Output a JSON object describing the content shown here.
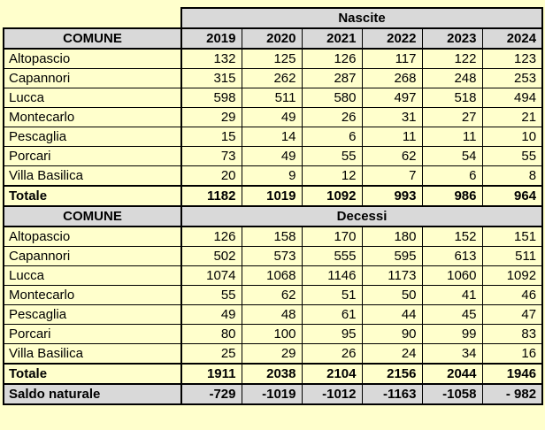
{
  "comune_header": "COMUNE",
  "years": [
    "2019",
    "2020",
    "2021",
    "2022",
    "2023",
    "2024"
  ],
  "sections": [
    {
      "title": "Nascite",
      "rows": [
        {
          "label": "Altopascio",
          "values": [
            "132",
            "125",
            "126",
            "117",
            "122",
            "123"
          ]
        },
        {
          "label": "Capannori",
          "values": [
            "315",
            "262",
            "287",
            "268",
            "248",
            "253"
          ]
        },
        {
          "label": "Lucca",
          "values": [
            "598",
            "511",
            "580",
            "497",
            "518",
            "494"
          ]
        },
        {
          "label": "Montecarlo",
          "values": [
            "29",
            "49",
            "26",
            "31",
            "27",
            "21"
          ]
        },
        {
          "label": "Pescaglia",
          "values": [
            "15",
            "14",
            "6",
            "11",
            "11",
            "10"
          ]
        },
        {
          "label": "Porcari",
          "values": [
            "73",
            "49",
            "55",
            "62",
            "54",
            "55"
          ]
        },
        {
          "label": "Villa Basilica",
          "values": [
            "20",
            "9",
            "12",
            "7",
            "6",
            "8"
          ]
        }
      ],
      "total": {
        "label": "Totale",
        "values": [
          "1182",
          "1019",
          "1092",
          "993",
          "986",
          "964"
        ]
      }
    },
    {
      "title": "Decessi",
      "rows": [
        {
          "label": "Altopascio",
          "values": [
            "126",
            "158",
            "170",
            "180",
            "152",
            "151"
          ]
        },
        {
          "label": "Capannori",
          "values": [
            "502",
            "573",
            "555",
            "595",
            "613",
            "511"
          ]
        },
        {
          "label": "Lucca",
          "values": [
            "1074",
            "1068",
            "1146",
            "1173",
            "1060",
            "1092"
          ]
        },
        {
          "label": "Montecarlo",
          "values": [
            "55",
            "62",
            "51",
            "50",
            "41",
            "46"
          ]
        },
        {
          "label": "Pescaglia",
          "values": [
            "49",
            "48",
            "61",
            "44",
            "45",
            "47"
          ]
        },
        {
          "label": "Porcari",
          "values": [
            "80",
            "100",
            "95",
            "90",
            "99",
            "83"
          ]
        },
        {
          "label": "Villa Basilica",
          "values": [
            "25",
            "29",
            "26",
            "24",
            "34",
            "16"
          ]
        }
      ],
      "total": {
        "label": "Totale",
        "values": [
          "1911",
          "2038",
          "2104",
          "2156",
          "2044",
          "1946"
        ]
      }
    }
  ],
  "saldo": {
    "label": "Saldo naturale",
    "values": [
      "-729",
      "-1019",
      "-1012",
      "-1163",
      "-1058",
      "- 982"
    ]
  },
  "colors": {
    "page_background": "#FFFFCC",
    "cell_yellow": "#FFFFCC",
    "header_gray": "#D9D9D9",
    "border_black": "#000000"
  },
  "chart_data": {
    "type": "table",
    "years": [
      2019,
      2020,
      2021,
      2022,
      2023,
      2024
    ],
    "comuni": [
      "Altopascio",
      "Capannori",
      "Lucca",
      "Montecarlo",
      "Pescaglia",
      "Porcari",
      "Villa Basilica"
    ],
    "nascite": {
      "Altopascio": [
        132,
        125,
        126,
        117,
        122,
        123
      ],
      "Capannori": [
        315,
        262,
        287,
        268,
        248,
        253
      ],
      "Lucca": [
        598,
        511,
        580,
        497,
        518,
        494
      ],
      "Montecarlo": [
        29,
        49,
        26,
        31,
        27,
        21
      ],
      "Pescaglia": [
        15,
        14,
        6,
        11,
        11,
        10
      ],
      "Porcari": [
        73,
        49,
        55,
        62,
        54,
        55
      ],
      "Villa Basilica": [
        20,
        9,
        12,
        7,
        6,
        8
      ],
      "Totale": [
        1182,
        1019,
        1092,
        993,
        986,
        964
      ]
    },
    "decessi": {
      "Altopascio": [
        126,
        158,
        170,
        180,
        152,
        151
      ],
      "Capannori": [
        502,
        573,
        555,
        595,
        613,
        511
      ],
      "Lucca": [
        1074,
        1068,
        1146,
        1173,
        1060,
        1092
      ],
      "Montecarlo": [
        55,
        62,
        51,
        50,
        41,
        46
      ],
      "Pescaglia": [
        49,
        48,
        61,
        44,
        45,
        47
      ],
      "Porcari": [
        80,
        100,
        95,
        90,
        99,
        83
      ],
      "Villa Basilica": [
        25,
        29,
        26,
        24,
        34,
        16
      ],
      "Totale": [
        1911,
        2038,
        2104,
        2156,
        2044,
        1946
      ]
    },
    "saldo_naturale": [
      -729,
      -1019,
      -1012,
      -1163,
      -1058,
      -982
    ]
  }
}
